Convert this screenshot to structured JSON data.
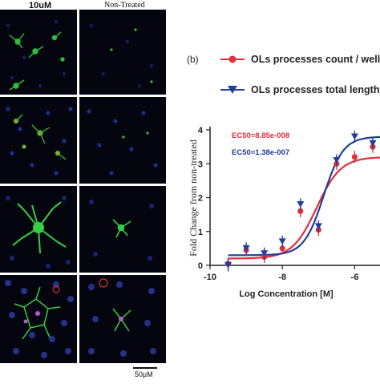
{
  "panel_a": {
    "column_headers": [
      "10uM",
      "Non-Treated"
    ],
    "scale_bar_label": "50µM"
  },
  "panel_b": {
    "label": "(b)",
    "legend": [
      {
        "text": "OLs processes count / well",
        "color": "#e0303a",
        "marker": "circle"
      },
      {
        "text": "OLs processes total length / well",
        "color": "#1f3f9c",
        "marker": "triangle-down"
      }
    ],
    "ec50": [
      {
        "text": "EC50=8.85e-008",
        "color": "#e0303a"
      },
      {
        "text": "EC50=1.38e-007",
        "color": "#1f3f9c"
      }
    ]
  },
  "chart_data": {
    "type": "scatter",
    "xlabel": "Log Concentration [M]",
    "ylabel": "Fold Change from non-treated",
    "xlim": [
      -10,
      -5.3
    ],
    "ylim": [
      0,
      4
    ],
    "xticks": [
      -10,
      -8,
      -6
    ],
    "yticks": [
      0,
      1,
      2,
      3,
      4
    ],
    "series": [
      {
        "name": "OLs processes count / well",
        "color": "#e0303a",
        "marker": "circle",
        "points": [
          {
            "x": -9.5,
            "y": 0.05
          },
          {
            "x": -9.0,
            "y": 0.45
          },
          {
            "x": -8.5,
            "y": 0.25
          },
          {
            "x": -8.0,
            "y": 0.5
          },
          {
            "x": -7.5,
            "y": 1.6
          },
          {
            "x": -7.0,
            "y": 1.05
          },
          {
            "x": -6.5,
            "y": 3.0
          },
          {
            "x": -6.0,
            "y": 3.2
          },
          {
            "x": -5.5,
            "y": 3.5
          }
        ],
        "fit": {
          "bottom": 0.2,
          "top": 3.2,
          "log_ec50": -7.053,
          "hill": 1.3
        }
      },
      {
        "name": "OLs processes total length / well",
        "color": "#1f3f9c",
        "marker": "triangle-down",
        "points": [
          {
            "x": -9.5,
            "y": 0.0
          },
          {
            "x": -9.0,
            "y": 0.5
          },
          {
            "x": -8.5,
            "y": 0.35
          },
          {
            "x": -8.0,
            "y": 0.7
          },
          {
            "x": -7.5,
            "y": 1.8
          },
          {
            "x": -7.0,
            "y": 1.15
          },
          {
            "x": -6.5,
            "y": 3.1
          },
          {
            "x": -6.0,
            "y": 3.8
          },
          {
            "x": -5.5,
            "y": 3.6
          }
        ],
        "fit": {
          "bottom": 0.3,
          "top": 3.8,
          "log_ec50": -6.86,
          "hill": 1.6
        }
      }
    ]
  }
}
